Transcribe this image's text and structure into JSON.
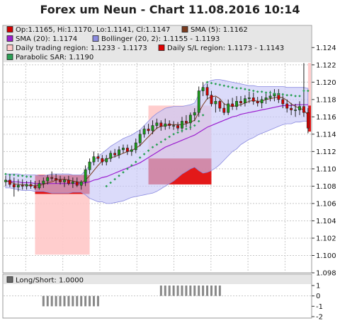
{
  "title": "Forex um Neun - Chart 11.08.2016 10:14",
  "colors": {
    "bull": "#1a9e1a",
    "bear": "#d40000",
    "bollinger_fill": "#c8c8f8",
    "bollinger_edge": "#8c8ce0",
    "sma20": "#9b1ecf",
    "sma5": "#7a3b1e",
    "trading_region": "#ffc8c8",
    "sl_region": "#e00000",
    "sar": "#2aa055",
    "grid": "#c8c8c8",
    "legend_bg": "#e6e6e6"
  },
  "legend": [
    {
      "label": "Op:1.1165, Hi:1.1170, Lo:1.1141, Cl:1.1147",
      "color": "#d40000"
    },
    {
      "label": "SMA (5): 1.1162",
      "color": "#7a3b1e"
    },
    {
      "label": "SMA (20): 1.1174",
      "color": "#9b1ecf"
    },
    {
      "label": "Bollinger (20, 2): 1.1155 - 1.1193",
      "color": "#8c8ce0"
    },
    {
      "label": "Daily trading region: 1.1233 - 1.1173",
      "color": "#ffc8c8"
    },
    {
      "label": "Daily S/L region: 1.1173 - 1.1143",
      "color": "#e00000"
    },
    {
      "label": "Parabolic SAR: 1.1190",
      "color": "#2aa055"
    }
  ],
  "sub_legend": {
    "label": "Long/Short: 1.0000",
    "color": "#666666"
  },
  "chart_data": [
    {
      "type": "candlestick",
      "ylim": [
        1.098,
        1.125
      ],
      "yticks": [
        "1.098",
        "1.100",
        "1.102",
        "1.104",
        "1.106",
        "1.108",
        "1.110",
        "1.112",
        "1.114",
        "1.116",
        "1.118",
        "1.120",
        "1.122",
        "1.124"
      ],
      "x": [
        0,
        1,
        2,
        3,
        4,
        5,
        6,
        7,
        8,
        9,
        10,
        11,
        12,
        13,
        14,
        15,
        16,
        17,
        18,
        19,
        20,
        21,
        22,
        23,
        24,
        25,
        26,
        27,
        28,
        29,
        30,
        31,
        32,
        33,
        34,
        35,
        36,
        37,
        38,
        39,
        40,
        41,
        42,
        43,
        44,
        45,
        46,
        47,
        48,
        49,
        50,
        51,
        52,
        53,
        54,
        55,
        56,
        57,
        58,
        59,
        60,
        61,
        62,
        63,
        64,
        65,
        66,
        67,
        68,
        69,
        70,
        71,
        72
      ],
      "open": [
        1.1085,
        1.1087,
        1.1082,
        1.1079,
        1.1081,
        1.108,
        1.1082,
        1.108,
        1.1078,
        1.1083,
        1.1086,
        1.109,
        1.1089,
        1.1087,
        1.1085,
        1.1087,
        1.1083,
        1.1085,
        1.1081,
        1.1085,
        1.1099,
        1.1108,
        1.1114,
        1.1112,
        1.1108,
        1.1112,
        1.1118,
        1.1116,
        1.1122,
        1.1124,
        1.112,
        1.1122,
        1.113,
        1.114,
        1.1146,
        1.1144,
        1.115,
        1.1153,
        1.1149,
        1.1152,
        1.115,
        1.115,
        1.1147,
        1.1155,
        1.1153,
        1.1162,
        1.1165,
        1.119,
        1.1194,
        1.1185,
        1.1175,
        1.1178,
        1.117,
        1.1165,
        1.1175,
        1.1172,
        1.1178,
        1.1176,
        1.1181,
        1.1182,
        1.1178,
        1.1176,
        1.118,
        1.1182,
        1.1184,
        1.1187,
        1.118,
        1.1175,
        1.117,
        1.1168,
        1.1168,
        1.1172,
        1.1165
      ],
      "high": [
        1.1092,
        1.1094,
        1.109,
        1.1088,
        1.1088,
        1.1086,
        1.1087,
        1.1086,
        1.1087,
        1.109,
        1.1093,
        1.1097,
        1.1094,
        1.1092,
        1.1091,
        1.1092,
        1.109,
        1.109,
        1.1087,
        1.1104,
        1.1112,
        1.112,
        1.1118,
        1.1116,
        1.1116,
        1.1121,
        1.1123,
        1.1126,
        1.1128,
        1.1128,
        1.1127,
        1.1135,
        1.1145,
        1.115,
        1.1152,
        1.1156,
        1.1158,
        1.1156,
        1.1158,
        1.1156,
        1.1155,
        1.1154,
        1.116,
        1.1162,
        1.1165,
        1.117,
        1.1195,
        1.12,
        1.1198,
        1.119,
        1.1183,
        1.118,
        1.1176,
        1.118,
        1.1182,
        1.1184,
        1.1184,
        1.1185,
        1.1189,
        1.1188,
        1.1183,
        1.1184,
        1.1188,
        1.119,
        1.1192,
        1.1192,
        1.1185,
        1.118,
        1.1176,
        1.1175,
        1.1178,
        1.1222,
        1.117
      ],
      "low": [
        1.108,
        1.1079,
        1.1068,
        1.1074,
        1.1076,
        1.1076,
        1.1077,
        1.1076,
        1.1076,
        1.1078,
        1.1082,
        1.1086,
        1.1083,
        1.1082,
        1.1079,
        1.1081,
        1.1078,
        1.1079,
        1.1076,
        1.108,
        1.1094,
        1.1104,
        1.1108,
        1.1104,
        1.1104,
        1.1108,
        1.1113,
        1.1112,
        1.1118,
        1.1116,
        1.1115,
        1.1118,
        1.1126,
        1.1136,
        1.114,
        1.114,
        1.1146,
        1.1144,
        1.1145,
        1.1146,
        1.1145,
        1.1144,
        1.1142,
        1.1148,
        1.1145,
        1.1155,
        1.116,
        1.1184,
        1.118,
        1.1172,
        1.1165,
        1.1166,
        1.1162,
        1.1162,
        1.1168,
        1.1168,
        1.1172,
        1.1172,
        1.1176,
        1.1174,
        1.1172,
        1.117,
        1.1175,
        1.1178,
        1.1178,
        1.1176,
        1.117,
        1.1165,
        1.1162,
        1.116,
        1.1162,
        1.116,
        1.1141
      ],
      "close": [
        1.1087,
        1.1082,
        1.1079,
        1.1081,
        1.108,
        1.1082,
        1.108,
        1.1078,
        1.1083,
        1.1086,
        1.109,
        1.1089,
        1.1087,
        1.1085,
        1.1087,
        1.1083,
        1.1085,
        1.1081,
        1.1085,
        1.1099,
        1.1108,
        1.1114,
        1.1112,
        1.1108,
        1.1112,
        1.1118,
        1.1116,
        1.1122,
        1.1124,
        1.112,
        1.1122,
        1.113,
        1.114,
        1.1146,
        1.1144,
        1.115,
        1.1153,
        1.1149,
        1.1152,
        1.115,
        1.115,
        1.1147,
        1.1155,
        1.1153,
        1.1162,
        1.1165,
        1.119,
        1.1194,
        1.1185,
        1.1175,
        1.1178,
        1.117,
        1.1165,
        1.1175,
        1.1172,
        1.1178,
        1.1176,
        1.1181,
        1.1182,
        1.1178,
        1.1176,
        1.118,
        1.1182,
        1.1184,
        1.1187,
        1.118,
        1.1175,
        1.117,
        1.1168,
        1.1168,
        1.1172,
        1.1165,
        1.1147
      ],
      "sma5": [
        1.1086,
        1.1085,
        1.1083,
        1.1082,
        1.1082,
        1.1081,
        1.1081,
        1.1081,
        1.1081,
        1.1082,
        1.1084,
        1.1085,
        1.1087,
        1.1088,
        1.1088,
        1.1087,
        1.1086,
        1.1085,
        1.1084,
        1.1087,
        1.1092,
        1.1098,
        1.1104,
        1.1109,
        1.1111,
        1.1113,
        1.1114,
        1.1116,
        1.1118,
        1.112,
        1.1121,
        1.1124,
        1.1127,
        1.1132,
        1.1137,
        1.1142,
        1.1147,
        1.1149,
        1.115,
        1.1151,
        1.1151,
        1.1151,
        1.1151,
        1.1152,
        1.1154,
        1.1156,
        1.1165,
        1.1174,
        1.1181,
        1.1183,
        1.1184,
        1.1181,
        1.1175,
        1.1173,
        1.1172,
        1.1173,
        1.1174,
        1.1176,
        1.1178,
        1.1179,
        1.1178,
        1.1178,
        1.118,
        1.1181,
        1.1182,
        1.1183,
        1.1182,
        1.1179,
        1.1175,
        1.1172,
        1.117,
        1.1168,
        1.1162
      ],
      "sma20": [
        1.1086,
        1.1086,
        1.1085,
        1.1085,
        1.1084,
        1.1084,
        1.1084,
        1.1083,
        1.1083,
        1.1083,
        1.1083,
        1.1083,
        1.1083,
        1.1083,
        1.1083,
        1.1083,
        1.1083,
        1.1083,
        1.1083,
        1.1084,
        1.1085,
        1.1087,
        1.1088,
        1.109,
        1.1091,
        1.1093,
        1.1095,
        1.1097,
        1.1099,
        1.1101,
        1.1103,
        1.1105,
        1.1107,
        1.111,
        1.1113,
        1.1116,
        1.1119,
        1.1122,
        1.1125,
        1.1127,
        1.1129,
        1.1131,
        1.1133,
        1.1135,
        1.1137,
        1.1139,
        1.1142,
        1.1145,
        1.1148,
        1.115,
        1.1152,
        1.1154,
        1.1156,
        1.1158,
        1.116,
        1.1161,
        1.1163,
        1.1164,
        1.1165,
        1.1166,
        1.1167,
        1.1168,
        1.1169,
        1.117,
        1.1171,
        1.1172,
        1.1173,
        1.1173,
        1.1173,
        1.1174,
        1.1174,
        1.1174,
        1.1174
      ],
      "bb_upper": [
        1.1094,
        1.1094,
        1.1094,
        1.1094,
        1.1093,
        1.1093,
        1.1093,
        1.1093,
        1.1092,
        1.1092,
        1.1093,
        1.1094,
        1.1094,
        1.1094,
        1.1094,
        1.1094,
        1.1093,
        1.1093,
        1.1093,
        1.1098,
        1.1104,
        1.111,
        1.1114,
        1.1118,
        1.1122,
        1.1126,
        1.1129,
        1.1132,
        1.1135,
        1.1137,
        1.1139,
        1.1142,
        1.1145,
        1.115,
        1.1155,
        1.116,
        1.1164,
        1.1167,
        1.117,
        1.1171,
        1.1172,
        1.1172,
        1.1172,
        1.1173,
        1.1174,
        1.1176,
        1.1186,
        1.1195,
        1.12,
        1.1202,
        1.1203,
        1.1203,
        1.1202,
        1.1201,
        1.12,
        1.1199,
        1.1198,
        1.1197,
        1.1196,
        1.1196,
        1.1195,
        1.1195,
        1.1195,
        1.1195,
        1.1195,
        1.1195,
        1.1195,
        1.1194,
        1.1194,
        1.1194,
        1.1194,
        1.1194,
        1.1193
      ],
      "bb_lower": [
        1.1078,
        1.1078,
        1.1077,
        1.1076,
        1.1075,
        1.1075,
        1.1075,
        1.1074,
        1.1074,
        1.1074,
        1.1073,
        1.1072,
        1.1072,
        1.1072,
        1.1072,
        1.1072,
        1.1073,
        1.1073,
        1.1073,
        1.107,
        1.1066,
        1.1064,
        1.1062,
        1.1062,
        1.106,
        1.106,
        1.1061,
        1.1062,
        1.1063,
        1.1065,
        1.1067,
        1.1068,
        1.1069,
        1.107,
        1.1071,
        1.1072,
        1.1074,
        1.1077,
        1.108,
        1.1083,
        1.1086,
        1.109,
        1.1094,
        1.1097,
        1.11,
        1.1102,
        1.1098,
        1.1095,
        1.1096,
        1.1098,
        1.1101,
        1.1105,
        1.111,
        1.1115,
        1.112,
        1.1123,
        1.1128,
        1.1131,
        1.1134,
        1.1136,
        1.1139,
        1.1141,
        1.1143,
        1.1145,
        1.1147,
        1.1149,
        1.1151,
        1.1152,
        1.1152,
        1.1154,
        1.1154,
        1.1155,
        1.1155
      ],
      "sar": [
        1.1094,
        1.1093,
        1.1093,
        1.1092,
        1.1092,
        1.1091,
        1.1091,
        null,
        null,
        null,
        null,
        null,
        null,
        null,
        null,
        null,
        null,
        null,
        null,
        null,
        null,
        null,
        null,
        null,
        1.108,
        1.1084,
        1.1088,
        1.1092,
        1.1096,
        1.11,
        1.1104,
        1.1108,
        1.1113,
        1.1117,
        1.1121,
        1.1125,
        1.1128,
        1.1131,
        1.1134,
        1.1137,
        1.114,
        1.1142,
        1.1144,
        1.1146,
        1.1148,
        1.115,
        1.1155,
        1.1162,
        1.12,
        1.1199,
        1.1198,
        1.1197,
        1.1196,
        1.1195,
        1.1194,
        1.1193,
        1.1193,
        1.1192,
        1.1191,
        1.119,
        1.1189,
        1.1189,
        1.1188,
        1.1188,
        1.1187,
        1.1186,
        1.1186,
        1.1185,
        1.1185,
        1.1184,
        1.1184,
        1.119,
        1.119
      ],
      "regions": [
        {
          "name": "Daily trading region",
          "x_start": 7,
          "x_end": 20,
          "y_low": 1.1001,
          "y_high": 1.1093
        },
        {
          "name": "Daily S/L region",
          "x_start": 7,
          "x_end": 20,
          "y_low": 1.1071,
          "y_high": 1.1093
        },
        {
          "name": "Daily trading region",
          "x_start": 34,
          "x_end": 49,
          "y_low": 1.1112,
          "y_high": 1.1173
        },
        {
          "name": "Daily S/L region",
          "x_start": 34,
          "x_end": 49,
          "y_low": 1.1082,
          "y_high": 1.1112
        },
        {
          "name": "Daily trading region",
          "x_start": 72,
          "x_end": 73,
          "y_low": 1.1173,
          "y_high": 1.1233
        },
        {
          "name": "Daily S/L region",
          "x_start": 72,
          "x_end": 73,
          "y_low": 1.1143,
          "y_high": 1.1173
        }
      ]
    },
    {
      "type": "bar",
      "name": "Long/Short",
      "ylim": [
        -2,
        1
      ],
      "yticks": [
        "-2",
        "-1",
        "0",
        "1"
      ],
      "bars": [
        {
          "x_start": 9,
          "x_end": 22,
          "value": -1
        },
        {
          "x_start": 37,
          "x_end": 51,
          "value": 1
        }
      ]
    }
  ]
}
